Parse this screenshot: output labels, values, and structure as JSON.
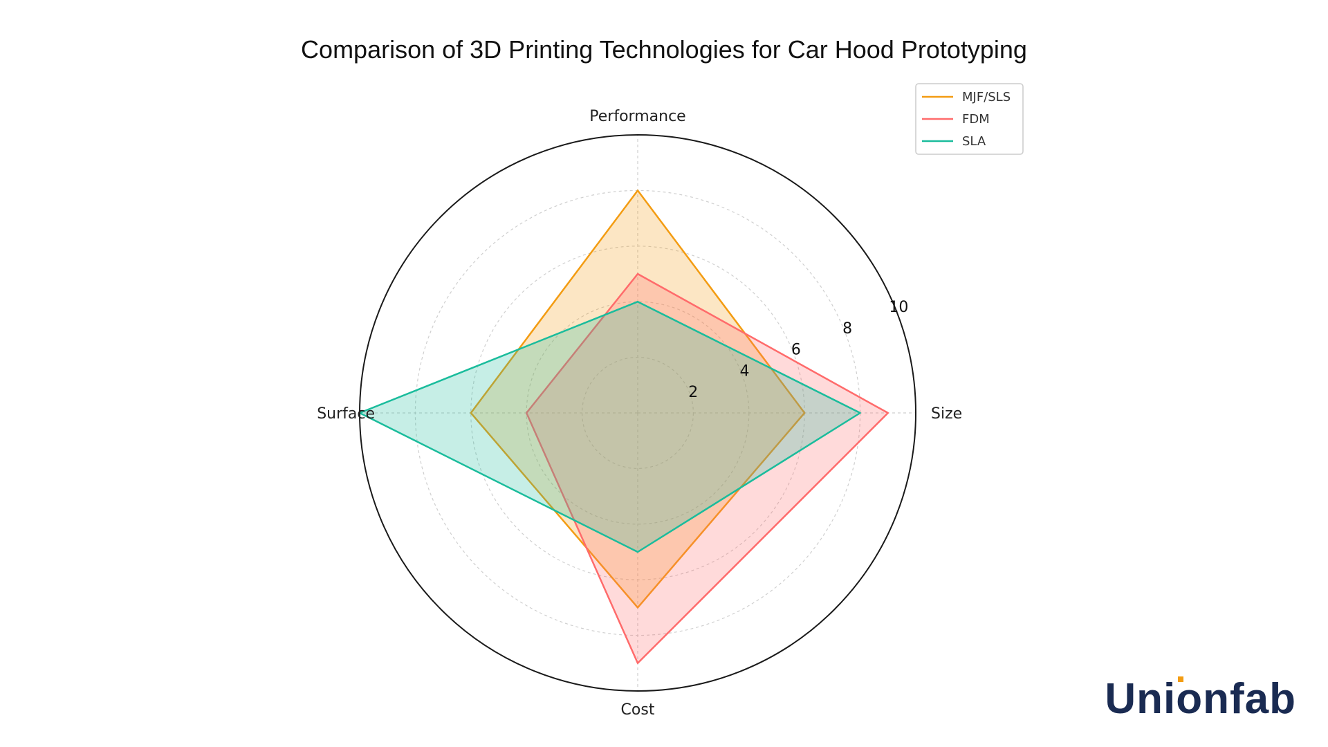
{
  "chart_data": {
    "type": "radar",
    "title": "Comparison of 3D Printing Technologies for Car Hood Prototyping",
    "axes": [
      "Size",
      "Performance",
      "Surface",
      "Cost"
    ],
    "rlim": [
      0,
      10
    ],
    "rticks": [
      2,
      4,
      6,
      8,
      10
    ],
    "grid": true,
    "legend_position": "top-right",
    "series": [
      {
        "name": "MJF/SLS",
        "color": "#F39C12",
        "values": [
          6,
          8,
          6,
          7
        ]
      },
      {
        "name": "FDM",
        "color": "#FF6B6B",
        "values": [
          9,
          5,
          4,
          9
        ]
      },
      {
        "name": "SLA",
        "color": "#1ABC9C",
        "values": [
          8,
          4,
          10,
          5
        ]
      }
    ]
  },
  "brand": {
    "logo_text": "Unionfab"
  }
}
